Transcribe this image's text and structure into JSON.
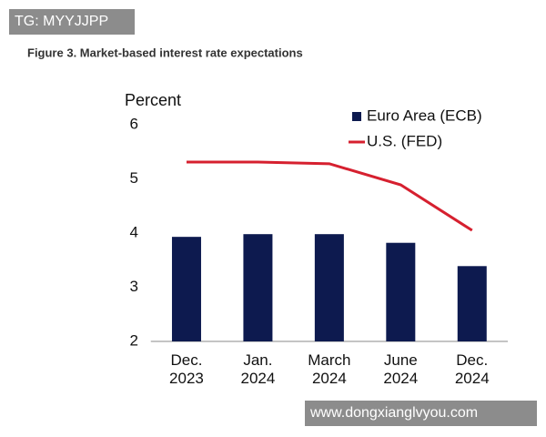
{
  "watermarks": [
    "TG: MYYJJPP",
    "www.dongxianglvyou.com"
  ],
  "chart_data": {
    "type": "bar",
    "title": "Figure 3. Market-based interest rate expectations",
    "ylabel": "Percent",
    "categories": [
      "Dec. 2023",
      "Jan. 2024",
      "March 2024",
      "June 2024",
      "Dec. 2024"
    ],
    "series": [
      {
        "name": "Euro Area (ECB)",
        "type": "bar",
        "color": "#0d1a4f",
        "values": [
          3.93,
          3.98,
          3.98,
          3.82,
          3.39
        ]
      },
      {
        "name": "U.S. (FED)",
        "type": "line",
        "color": "#d6202f",
        "values": [
          5.31,
          5.31,
          5.28,
          4.89,
          4.05
        ]
      }
    ],
    "ylim": [
      2,
      6
    ],
    "yticks": [
      2,
      3,
      4,
      5,
      6
    ],
    "grid": false,
    "legend": "upper right"
  }
}
